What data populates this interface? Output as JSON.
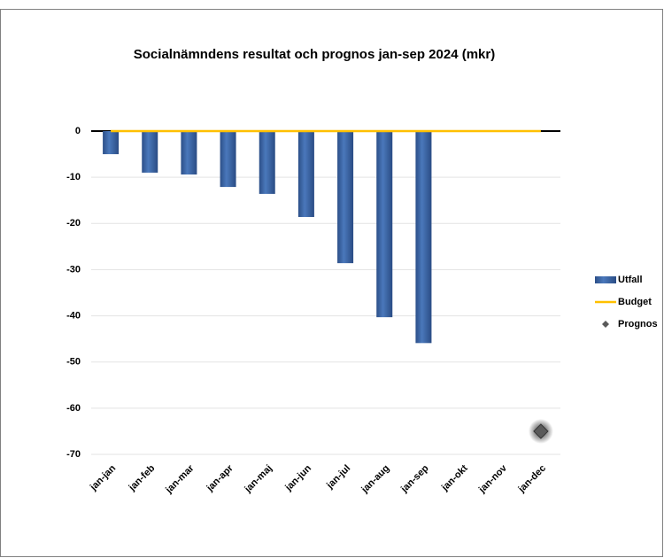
{
  "chart_data": {
    "type": "bar",
    "title": "Socialnämndens resultat och prognos  jan-sep 2024 (mkr)",
    "categories": [
      "jan-jan",
      "jan-feb",
      "jan-mar",
      "jan-apr",
      "jan-maj",
      "jan-jun",
      "jan-jul",
      "jan-aug",
      "jan-sep",
      "jan-okt",
      "jan-nov",
      "jan-dec"
    ],
    "series": [
      {
        "name": "Utfall",
        "type": "bar",
        "color": "#3a63a3",
        "values": [
          -5,
          -9,
          -9.4,
          -12.1,
          -13.6,
          -18.6,
          -28.6,
          -40.3,
          -45.9,
          null,
          null,
          null
        ]
      },
      {
        "name": "Budget",
        "type": "line",
        "color": "#ffc000",
        "values": [
          0,
          0,
          0,
          0,
          0,
          0,
          0,
          0,
          0,
          0,
          0,
          0
        ]
      },
      {
        "name": "Prognos",
        "type": "scatter",
        "color": "#5a5a5a",
        "values": [
          null,
          null,
          null,
          null,
          null,
          null,
          null,
          null,
          null,
          null,
          null,
          -65
        ]
      }
    ],
    "ylim": [
      -70,
      0
    ],
    "yticks": [
      -70,
      -60,
      -50,
      -40,
      -30,
      -20,
      -10,
      0
    ],
    "grid": true,
    "legend": "right"
  }
}
